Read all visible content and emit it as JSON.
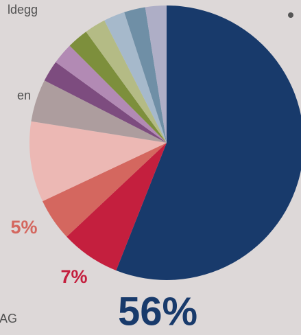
{
  "chart_data": {
    "type": "pie",
    "categories": [
      null,
      "AG",
      null,
      null,
      "en",
      null,
      null,
      null,
      null,
      null,
      null,
      "ldegg"
    ],
    "values": [
      56,
      7,
      5,
      9.5,
      5,
      2.5,
      2.5,
      2.5,
      2.5,
      2.5,
      2.5,
      2.5
    ],
    "value_labels": [
      "56%",
      "7%",
      "5%",
      null,
      null,
      null,
      null,
      null,
      null,
      null,
      null,
      null
    ],
    "colors": [
      "#183a6b",
      "#c41f3e",
      "#d4675f",
      "#ecb8b4",
      "#ad9d9e",
      "#7d4c7f",
      "#b28ab4",
      "#7d8f3c",
      "#b4bb85",
      "#a6b9cb",
      "#6f8fa6",
      "#aeaec6"
    ]
  }
}
